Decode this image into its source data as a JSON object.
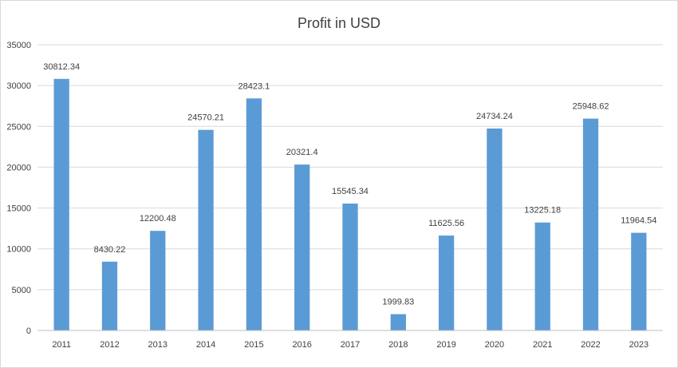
{
  "chart_data": {
    "type": "bar",
    "title": "Profit in USD",
    "xlabel": "",
    "ylabel": "",
    "categories": [
      "2011",
      "2012",
      "2013",
      "2014",
      "2015",
      "2016",
      "2017",
      "2018",
      "2019",
      "2020",
      "2021",
      "2022",
      "2023"
    ],
    "values": [
      30812.34,
      8430.22,
      12200.48,
      24570.21,
      28423.1,
      20321.4,
      15545.34,
      1999.83,
      11625.56,
      24734.24,
      13225.18,
      25948.62,
      11964.54
    ],
    "data_labels": [
      "30812.34",
      "8430.22",
      "12200.48",
      "24570.21",
      "28423.1",
      "20321.4",
      "15545.34",
      "1999.83",
      "11625.56",
      "24734.24",
      "13225.18",
      "25948.62",
      "11964.54"
    ],
    "ylim": [
      0,
      35000
    ],
    "yticks": [
      "0",
      "5000",
      "10000",
      "15000",
      "20000",
      "25000",
      "30000",
      "35000"
    ],
    "grid": true,
    "legend": "none",
    "colors": {
      "bar": "#5b9bd5",
      "grid": "#d9d9d9",
      "text": "#404040"
    }
  }
}
